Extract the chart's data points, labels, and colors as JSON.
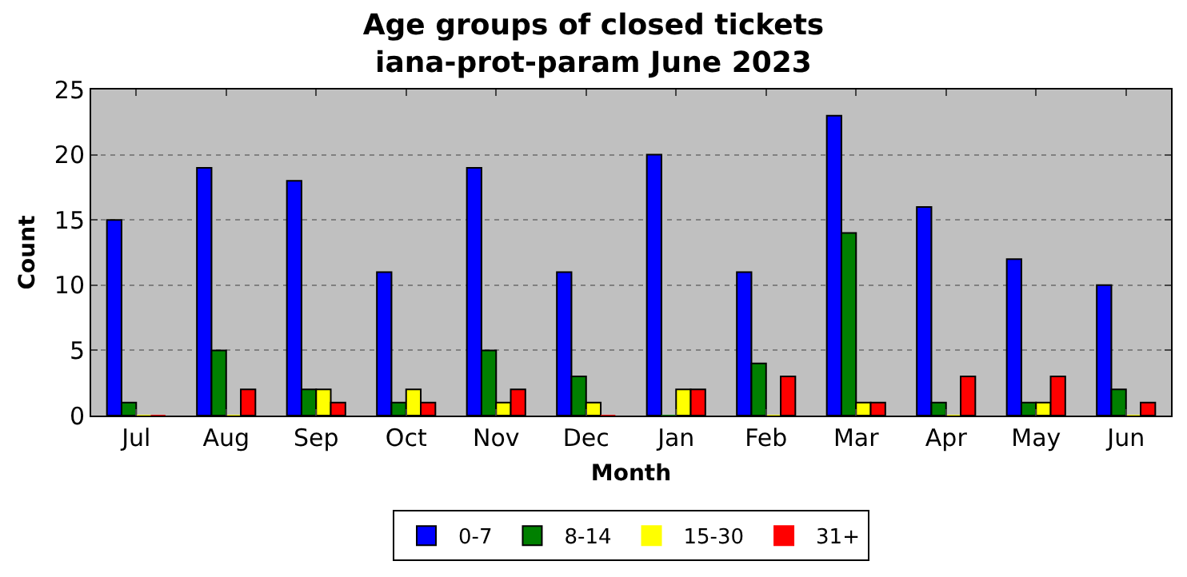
{
  "chart_data": {
    "type": "bar",
    "title": "Age groups of closed tickets\niana-prot-param June 2023",
    "xlabel": "Month",
    "ylabel": "Count",
    "categories": [
      "Jul",
      "Aug",
      "Sep",
      "Oct",
      "Nov",
      "Dec",
      "Jan",
      "Feb",
      "Mar",
      "Apr",
      "May",
      "Jun"
    ],
    "series": [
      {
        "name": "0-7",
        "color": "#0000ff",
        "values": [
          15,
          19,
          18,
          11,
          19,
          11,
          20,
          11,
          23,
          16,
          12,
          10
        ]
      },
      {
        "name": "8-14",
        "color": "#008000",
        "values": [
          1,
          5,
          2,
          1,
          5,
          3,
          0,
          4,
          14,
          1,
          1,
          2
        ]
      },
      {
        "name": "15-30",
        "color": "#ffff00",
        "values": [
          0,
          0,
          2,
          2,
          1,
          1,
          2,
          0,
          1,
          0,
          1,
          0
        ]
      },
      {
        "name": "31+",
        "color": "#ff0000",
        "values": [
          0,
          2,
          1,
          1,
          2,
          0,
          2,
          3,
          1,
          3,
          3,
          1
        ]
      }
    ],
    "ylim": [
      0,
      25
    ],
    "yticks": [
      0,
      5,
      10,
      15,
      20,
      25
    ],
    "grid": "y",
    "legend": "bottom"
  }
}
